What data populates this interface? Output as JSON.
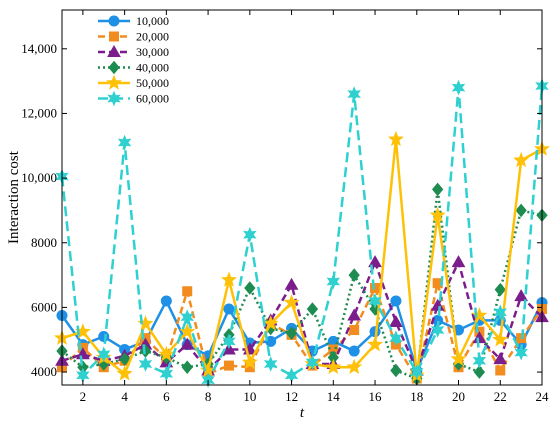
{
  "chart_data": {
    "type": "line",
    "title": "",
    "xlabel": "t",
    "ylabel": "Interaction cost",
    "xlim": [
      1,
      24
    ],
    "ylim": [
      3600,
      15200
    ],
    "x_ticks": [
      2,
      4,
      6,
      8,
      10,
      12,
      14,
      16,
      18,
      20,
      22,
      24
    ],
    "x_tick_labels": [
      "2",
      "4",
      "6",
      "8",
      "10",
      "12",
      "14",
      "16",
      "18",
      "20",
      "22",
      "24"
    ],
    "y_ticks": [
      4000,
      6000,
      8000,
      10000,
      12000,
      14000
    ],
    "y_tick_labels": [
      "4000",
      "6000",
      "8000",
      "10,000",
      "12,000",
      "14,000"
    ],
    "grid": false,
    "legend_position": "top-left",
    "x": [
      1,
      2,
      3,
      4,
      5,
      6,
      7,
      8,
      9,
      10,
      11,
      12,
      13,
      14,
      15,
      16,
      17,
      18,
      19,
      20,
      21,
      22,
      23,
      24
    ],
    "series": [
      {
        "name": "10,000",
        "color": "#1E90E6",
        "marker": "circle",
        "dash": "solid",
        "values": [
          5750,
          4850,
          5100,
          4700,
          4950,
          6200,
          4850,
          4500,
          5950,
          4900,
          4950,
          5350,
          4650,
          4950,
          4650,
          5250,
          6200,
          4050,
          5600,
          5300,
          5600,
          5600,
          4850,
          6150
        ]
      },
      {
        "name": "20,000",
        "color": "#F28C1E",
        "marker": "square",
        "dash": "dash",
        "values": [
          4150,
          4750,
          4150,
          4350,
          5050,
          4400,
          6500,
          3950,
          4200,
          4150,
          5500,
          5150,
          4200,
          4700,
          5300,
          6600,
          4850,
          3800,
          6750,
          4150,
          5250,
          4050,
          5050,
          5950
        ]
      },
      {
        "name": "30,000",
        "color": "#7B1E8C",
        "marker": "triangle",
        "dash": "dash",
        "values": [
          4350,
          4550,
          4350,
          4500,
          4850,
          4300,
          4850,
          4050,
          4700,
          4700,
          5600,
          6700,
          4250,
          4250,
          5750,
          7400,
          5550,
          4050,
          6050,
          7400,
          5050,
          4400,
          6350,
          5700
        ]
      },
      {
        "name": "40,000",
        "color": "#1E8C50",
        "marker": "diamond",
        "dash": "dot",
        "values": [
          4650,
          4150,
          4250,
          4400,
          4650,
          4450,
          4150,
          4250,
          5150,
          6600,
          5350,
          5200,
          5950,
          4450,
          7000,
          5950,
          4050,
          3800,
          9650,
          4250,
          4000,
          6550,
          9000,
          8850
        ]
      },
      {
        "name": "50,000",
        "color": "#FFC107",
        "marker": "star5",
        "dash": "solid",
        "values": [
          5050,
          5250,
          4450,
          3950,
          5500,
          4550,
          5250,
          4050,
          6850,
          4300,
          5500,
          6150,
          4250,
          4150,
          4150,
          4850,
          11200,
          3900,
          8850,
          4400,
          5750,
          5000,
          10550,
          10900
        ]
      },
      {
        "name": "60,000",
        "color": "#2ED0D0",
        "marker": "star6",
        "dash": "longdash",
        "values": [
          10050,
          3900,
          4550,
          11100,
          4250,
          3950,
          5700,
          3750,
          4950,
          8250,
          4250,
          3900,
          4300,
          6800,
          12600,
          6200,
          5050,
          4000,
          5300,
          12800,
          4350,
          5850,
          4600,
          12850
        ]
      }
    ]
  }
}
